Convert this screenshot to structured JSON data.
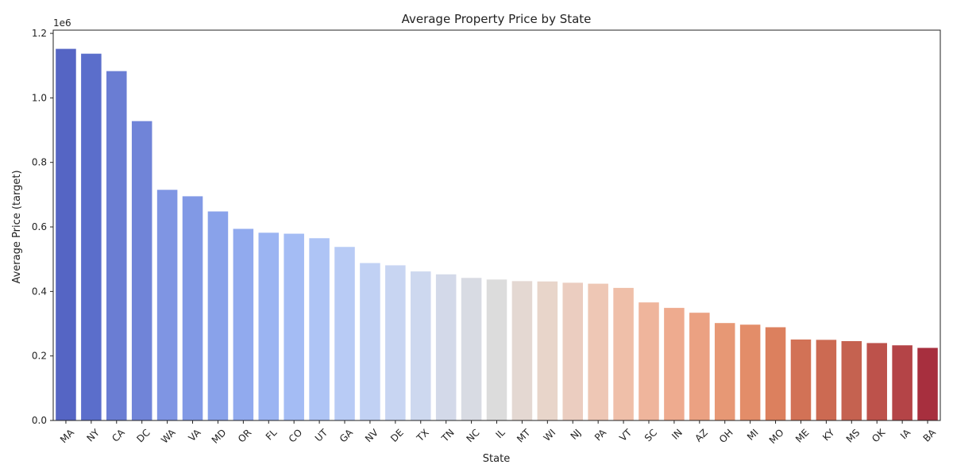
{
  "chart_data": {
    "type": "bar",
    "title": "Average Property Price by State",
    "xlabel": "State",
    "ylabel": "Average Price (target)",
    "y_scale_note": "1e6",
    "ylim": [
      0,
      1.21
    ],
    "yticks": [
      "0.0",
      "0.2",
      "0.4",
      "0.6",
      "0.8",
      "1.0",
      "1.2"
    ],
    "ytick_values": [
      0,
      0.2,
      0.4,
      0.6,
      0.8,
      1.0,
      1.2
    ],
    "categories": [
      "MA",
      "NY",
      "CA",
      "DC",
      "WA",
      "VA",
      "MD",
      "OR",
      "FL",
      "CO",
      "UT",
      "GA",
      "NV",
      "DE",
      "TX",
      "TN",
      "NC",
      "IL",
      "MT",
      "WI",
      "NJ",
      "PA",
      "VT",
      "SC",
      "IN",
      "AZ",
      "OH",
      "MI",
      "MO",
      "ME",
      "KY",
      "MS",
      "OK",
      "IA",
      "BA"
    ],
    "values": [
      1.152,
      1.137,
      1.083,
      0.928,
      0.715,
      0.695,
      0.648,
      0.594,
      0.582,
      0.579,
      0.565,
      0.538,
      0.488,
      0.481,
      0.462,
      0.453,
      0.442,
      0.437,
      0.432,
      0.431,
      0.427,
      0.424,
      0.411,
      0.366,
      0.349,
      0.334,
      0.302,
      0.297,
      0.289,
      0.251,
      0.25,
      0.246,
      0.24,
      0.233,
      0.225
    ],
    "colors": [
      "#5565c4",
      "#5b6ecb",
      "#6a7dd3",
      "#7084d8",
      "#7f95e3",
      "#8199e5",
      "#89a2ea",
      "#91aaee",
      "#9bb4f2",
      "#a4bcf4",
      "#aec4f5",
      "#b8cbf5",
      "#c1d1f4",
      "#c8d5f2",
      "#cdd8ef",
      "#d3d9e9",
      "#d8dbe3",
      "#dcdcdc",
      "#e4d8d2",
      "#e8d5ca",
      "#ebcdc0",
      "#eec7b5",
      "#efbfa9",
      "#efb59c",
      "#eeab8f",
      "#eba182",
      "#e79875",
      "#e38d69",
      "#dc805e",
      "#d27256",
      "#cc6a52",
      "#c56250",
      "#bd524b",
      "#b44447",
      "#a72f3e"
    ],
    "grid": false,
    "legend": "none"
  }
}
